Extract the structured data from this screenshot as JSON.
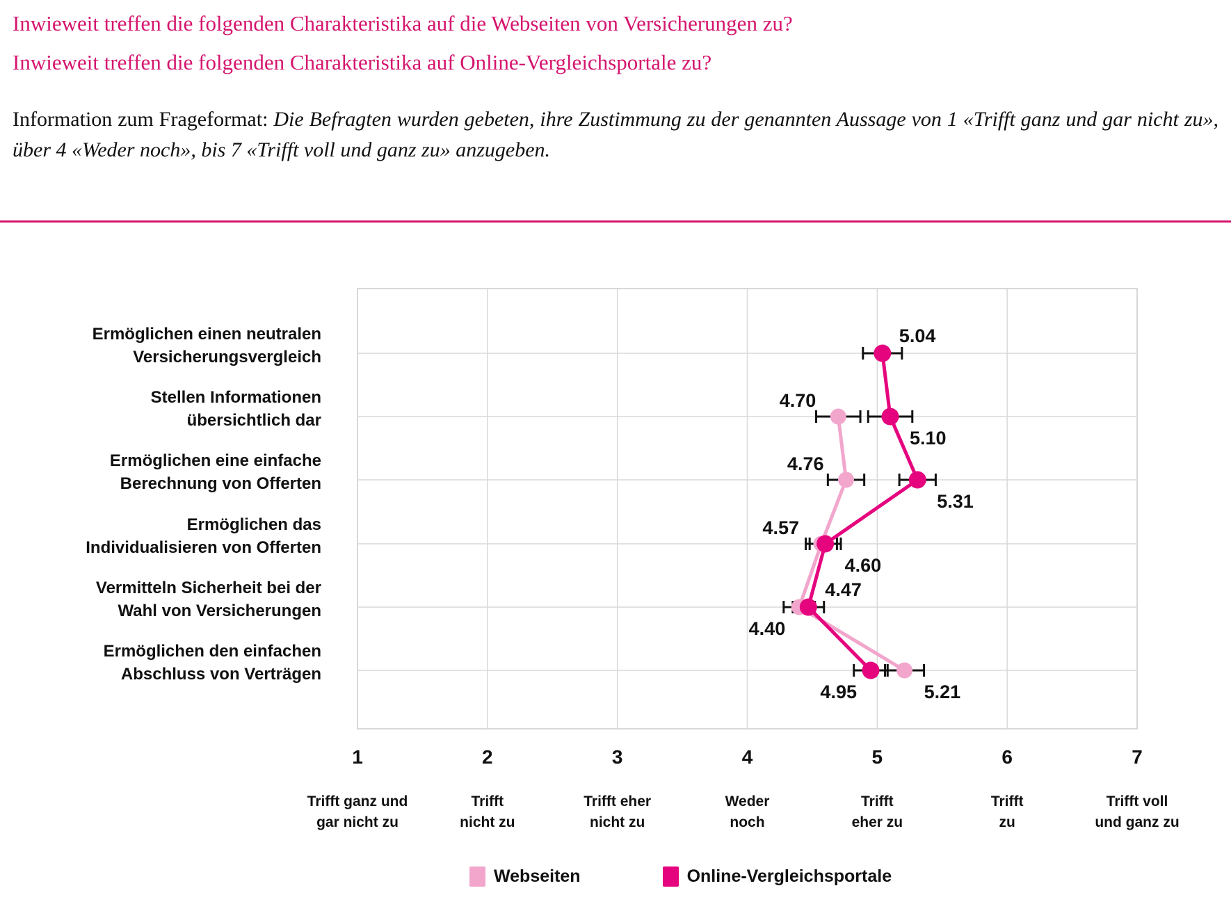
{
  "header": {
    "question1": "Inwieweit treffen die folgenden Charakteristika auf die Webseiten von Versicherungen zu?",
    "question2": "Inwieweit treffen die folgenden Charakteristika auf Online-Vergleichsportale zu?",
    "info_prefix": "Information zum Frageformat:",
    "info_italic": "Die Befragten wurden gebeten, ihre Zustimmung zu der genannten Aussage von 1 «Trifft ganz und gar nicht zu», über 4 «Weder noch», bis 7 «Trifft voll und ganz zu» anzugeben."
  },
  "colors": {
    "accent_pink": "#D5156E",
    "webseiten": "#F2A6CC",
    "portale": "#E5047E",
    "grid": "#D9D9D9",
    "plot_border": "#CCCCCC",
    "text": "#111111"
  },
  "chart_data": {
    "type": "line",
    "description": "Dot-and-line plot with error bars: mean agreement per statement on a 1-7 scale",
    "grid": true,
    "x_axis": {
      "min": 1,
      "max": 7,
      "ticks": [
        {
          "value": "1",
          "lines": [
            "Trifft ganz und",
            "gar nicht zu"
          ]
        },
        {
          "value": "2",
          "lines": [
            "Trifft",
            "nicht zu"
          ]
        },
        {
          "value": "3",
          "lines": [
            "Trifft eher",
            "nicht zu"
          ]
        },
        {
          "value": "4",
          "lines": [
            "Weder",
            "noch"
          ]
        },
        {
          "value": "5",
          "lines": [
            "Trifft",
            "eher zu"
          ]
        },
        {
          "value": "6",
          "lines": [
            "Trifft",
            "zu"
          ]
        },
        {
          "value": "7",
          "lines": [
            "Trifft voll",
            "und ganz zu"
          ]
        }
      ]
    },
    "categories": [
      {
        "lines": [
          "Ermöglichen einen neutralen",
          "Versicherungsvergleich"
        ]
      },
      {
        "lines": [
          "Stellen Informationen",
          "übersichtlich dar"
        ]
      },
      {
        "lines": [
          "Ermöglichen eine einfache",
          "Berechnung von Offerten"
        ]
      },
      {
        "lines": [
          "Ermöglichen das",
          "Individualisieren von Offerten"
        ]
      },
      {
        "lines": [
          "Vermitteln Sicherheit bei der",
          "Wahl von Versicherungen"
        ]
      },
      {
        "lines": [
          "Ermöglichen den einfachen",
          "Abschluss von Verträgen"
        ]
      }
    ],
    "series": [
      {
        "name": "Webseiten",
        "color": "#F2A6CC",
        "points": [
          {
            "row": 1,
            "value": 4.7,
            "label": "4.70",
            "error": 0.17,
            "anchor": "above-left"
          },
          {
            "row": 2,
            "value": 4.76,
            "label": "4.76",
            "error": 0.14,
            "anchor": "above-left"
          },
          {
            "row": 3,
            "value": 4.57,
            "label": "4.57",
            "error": 0.12,
            "anchor": "above-left"
          },
          {
            "row": 4,
            "value": 4.4,
            "label": "4.40",
            "error": 0.12,
            "anchor": "below-left"
          },
          {
            "row": 5,
            "value": 5.21,
            "label": "5.21",
            "error": 0.15,
            "anchor": "below-right"
          }
        ]
      },
      {
        "name": "Online-Vergleichsportale",
        "color": "#E5047E",
        "points": [
          {
            "row": 0,
            "value": 5.04,
            "label": "5.04",
            "error": 0.15,
            "anchor": "above-right"
          },
          {
            "row": 1,
            "value": 5.1,
            "label": "5.10",
            "error": 0.17,
            "anchor": "below-right"
          },
          {
            "row": 2,
            "value": 5.31,
            "label": "5.31",
            "error": 0.14,
            "anchor": "below-right"
          },
          {
            "row": 3,
            "value": 4.6,
            "label": "4.60",
            "error": 0.12,
            "anchor": "below-right"
          },
          {
            "row": 4,
            "value": 4.47,
            "label": "4.47",
            "error": 0.12,
            "anchor": "above-right"
          },
          {
            "row": 5,
            "value": 4.95,
            "label": "4.95",
            "error": 0.13,
            "anchor": "below-left"
          }
        ]
      }
    ],
    "legend": {
      "position": "bottom",
      "items": [
        "Webseiten",
        "Online-Vergleichsportale"
      ]
    }
  }
}
